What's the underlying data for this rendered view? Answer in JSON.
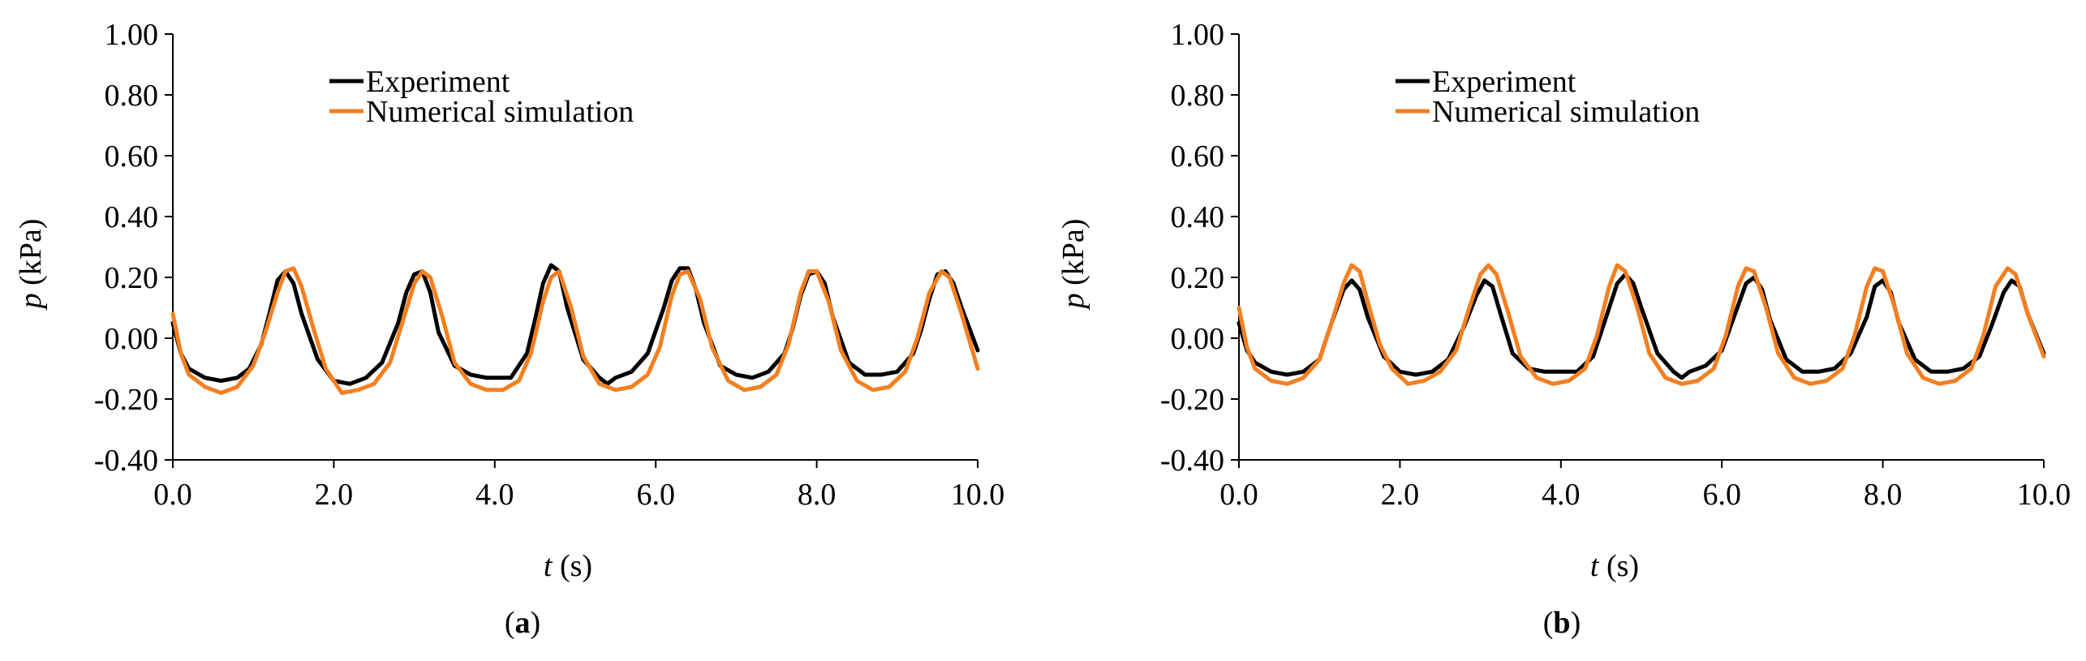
{
  "chart_data": [
    {
      "type": "line",
      "panel_label": "a",
      "xlabel_var": "t",
      "xlabel_unit": " (s)",
      "ylabel_var": "p",
      "ylabel_unit": " (kPa)",
      "xlim": [
        0,
        10
      ],
      "ylim": [
        -0.4,
        1.0
      ],
      "xticks": [
        "0.0",
        "2.0",
        "4.0",
        "6.0",
        "8.0",
        "10.0"
      ],
      "yticks": [
        "-0.40",
        "-0.20",
        "0.00",
        "0.20",
        "0.40",
        "0.60",
        "0.80",
        "1.00"
      ],
      "grid": false,
      "legend_position": "top-left",
      "series": [
        {
          "name": "Experiment",
          "color": "#000000",
          "x": [
            0.0,
            0.1,
            0.2,
            0.4,
            0.6,
            0.8,
            0.95,
            1.1,
            1.2,
            1.3,
            1.4,
            1.5,
            1.6,
            1.8,
            2.0,
            2.2,
            2.4,
            2.6,
            2.8,
            2.9,
            3.0,
            3.1,
            3.2,
            3.3,
            3.5,
            3.7,
            3.9,
            4.0,
            4.2,
            4.4,
            4.5,
            4.6,
            4.7,
            4.8,
            4.9,
            5.1,
            5.3,
            5.4,
            5.5,
            5.7,
            5.9,
            6.1,
            6.2,
            6.3,
            6.4,
            6.5,
            6.6,
            6.8,
            7.0,
            7.2,
            7.4,
            7.6,
            7.7,
            7.8,
            7.9,
            8.0,
            8.1,
            8.2,
            8.4,
            8.6,
            8.8,
            9.0,
            9.2,
            9.3,
            9.4,
            9.5,
            9.6,
            9.7,
            9.8,
            10.0
          ],
          "values": [
            0.05,
            -0.05,
            -0.1,
            -0.13,
            -0.14,
            -0.13,
            -0.1,
            -0.02,
            0.08,
            0.19,
            0.22,
            0.18,
            0.08,
            -0.07,
            -0.14,
            -0.15,
            -0.13,
            -0.08,
            0.05,
            0.15,
            0.21,
            0.22,
            0.15,
            0.02,
            -0.09,
            -0.12,
            -0.13,
            -0.13,
            -0.13,
            -0.05,
            0.06,
            0.18,
            0.24,
            0.22,
            0.1,
            -0.07,
            -0.13,
            -0.15,
            -0.13,
            -0.11,
            -0.05,
            0.1,
            0.19,
            0.23,
            0.23,
            0.16,
            0.05,
            -0.09,
            -0.12,
            -0.13,
            -0.11,
            -0.05,
            0.03,
            0.14,
            0.21,
            0.22,
            0.18,
            0.07,
            -0.08,
            -0.12,
            -0.12,
            -0.11,
            -0.05,
            0.03,
            0.13,
            0.21,
            0.22,
            0.18,
            0.1,
            -0.04
          ]
        },
        {
          "name": "Numerical simulation",
          "color": "#f47f20",
          "x": [
            0.0,
            0.1,
            0.2,
            0.4,
            0.6,
            0.8,
            1.0,
            1.15,
            1.3,
            1.4,
            1.5,
            1.6,
            1.75,
            1.9,
            2.1,
            2.3,
            2.5,
            2.7,
            2.85,
            3.0,
            3.1,
            3.2,
            3.35,
            3.5,
            3.7,
            3.9,
            4.1,
            4.3,
            4.45,
            4.6,
            4.7,
            4.8,
            4.95,
            5.1,
            5.3,
            5.5,
            5.7,
            5.9,
            6.05,
            6.2,
            6.3,
            6.4,
            6.55,
            6.7,
            6.9,
            7.1,
            7.3,
            7.5,
            7.65,
            7.8,
            7.9,
            8.0,
            8.15,
            8.3,
            8.5,
            8.7,
            8.9,
            9.1,
            9.25,
            9.4,
            9.55,
            9.65,
            9.8,
            10.0
          ],
          "values": [
            0.08,
            -0.05,
            -0.12,
            -0.16,
            -0.18,
            -0.16,
            -0.09,
            0.02,
            0.15,
            0.22,
            0.23,
            0.17,
            0.03,
            -0.1,
            -0.18,
            -0.17,
            -0.15,
            -0.08,
            0.05,
            0.18,
            0.22,
            0.2,
            0.07,
            -0.08,
            -0.15,
            -0.17,
            -0.17,
            -0.14,
            -0.05,
            0.12,
            0.2,
            0.22,
            0.1,
            -0.06,
            -0.15,
            -0.17,
            -0.16,
            -0.12,
            -0.03,
            0.14,
            0.21,
            0.22,
            0.13,
            -0.03,
            -0.14,
            -0.17,
            -0.16,
            -0.12,
            -0.02,
            0.15,
            0.22,
            0.22,
            0.12,
            -0.04,
            -0.14,
            -0.17,
            -0.16,
            -0.11,
            0.0,
            0.15,
            0.22,
            0.2,
            0.08,
            -0.1
          ]
        }
      ]
    },
    {
      "type": "line",
      "panel_label": "b",
      "xlabel_var": "t",
      "xlabel_unit": " (s)",
      "ylabel_var": "p",
      "ylabel_unit": " (kPa)",
      "xlim": [
        0,
        10
      ],
      "ylim": [
        -0.4,
        1.0
      ],
      "xticks": [
        "0.0",
        "2.0",
        "4.0",
        "6.0",
        "8.0",
        "10.0"
      ],
      "yticks": [
        "-0.40",
        "-0.20",
        "0.00",
        "0.20",
        "0.40",
        "0.60",
        "0.80",
        "1.00"
      ],
      "grid": false,
      "legend_position": "top-left",
      "series": [
        {
          "name": "Experiment",
          "color": "#000000",
          "x": [
            0.0,
            0.1,
            0.2,
            0.4,
            0.6,
            0.8,
            1.0,
            1.15,
            1.3,
            1.4,
            1.5,
            1.6,
            1.8,
            2.0,
            2.2,
            2.4,
            2.6,
            2.8,
            2.95,
            3.05,
            3.15,
            3.25,
            3.4,
            3.6,
            3.8,
            4.0,
            4.2,
            4.4,
            4.55,
            4.7,
            4.8,
            4.9,
            5.0,
            5.2,
            5.4,
            5.5,
            5.6,
            5.8,
            6.0,
            6.15,
            6.3,
            6.4,
            6.5,
            6.6,
            6.8,
            7.0,
            7.2,
            7.4,
            7.6,
            7.8,
            7.9,
            8.0,
            8.1,
            8.2,
            8.4,
            8.6,
            8.8,
            9.0,
            9.2,
            9.35,
            9.5,
            9.6,
            9.7,
            9.8,
            10.0
          ],
          "values": [
            0.05,
            -0.04,
            -0.08,
            -0.11,
            -0.12,
            -0.11,
            -0.07,
            0.05,
            0.16,
            0.19,
            0.16,
            0.07,
            -0.06,
            -0.11,
            -0.12,
            -0.11,
            -0.07,
            0.04,
            0.14,
            0.19,
            0.17,
            0.08,
            -0.05,
            -0.1,
            -0.11,
            -0.11,
            -0.11,
            -0.06,
            0.06,
            0.18,
            0.21,
            0.18,
            0.1,
            -0.05,
            -0.11,
            -0.13,
            -0.11,
            -0.09,
            -0.04,
            0.07,
            0.18,
            0.2,
            0.16,
            0.06,
            -0.07,
            -0.11,
            -0.11,
            -0.1,
            -0.05,
            0.07,
            0.17,
            0.19,
            0.15,
            0.05,
            -0.07,
            -0.11,
            -0.11,
            -0.1,
            -0.06,
            0.04,
            0.15,
            0.19,
            0.17,
            0.08,
            -0.05
          ]
        },
        {
          "name": "Numerical simulation",
          "color": "#f47f20",
          "x": [
            0.0,
            0.1,
            0.2,
            0.4,
            0.6,
            0.8,
            1.0,
            1.15,
            1.3,
            1.4,
            1.5,
            1.6,
            1.75,
            1.9,
            2.1,
            2.3,
            2.5,
            2.7,
            2.85,
            3.0,
            3.1,
            3.2,
            3.35,
            3.5,
            3.7,
            3.9,
            4.1,
            4.3,
            4.45,
            4.6,
            4.7,
            4.8,
            4.95,
            5.1,
            5.3,
            5.5,
            5.7,
            5.9,
            6.05,
            6.2,
            6.3,
            6.4,
            6.55,
            6.7,
            6.9,
            7.1,
            7.3,
            7.5,
            7.65,
            7.8,
            7.9,
            8.0,
            8.15,
            8.3,
            8.5,
            8.7,
            8.9,
            9.1,
            9.25,
            9.4,
            9.55,
            9.65,
            9.8,
            10.0
          ],
          "values": [
            0.1,
            -0.03,
            -0.1,
            -0.14,
            -0.15,
            -0.13,
            -0.07,
            0.05,
            0.18,
            0.24,
            0.22,
            0.12,
            -0.02,
            -0.1,
            -0.15,
            -0.14,
            -0.11,
            -0.04,
            0.09,
            0.21,
            0.24,
            0.21,
            0.08,
            -0.06,
            -0.13,
            -0.15,
            -0.14,
            -0.1,
            0.01,
            0.17,
            0.24,
            0.22,
            0.1,
            -0.05,
            -0.13,
            -0.15,
            -0.14,
            -0.1,
            0.01,
            0.17,
            0.23,
            0.22,
            0.1,
            -0.05,
            -0.13,
            -0.15,
            -0.14,
            -0.1,
            0.01,
            0.17,
            0.23,
            0.22,
            0.1,
            -0.05,
            -0.13,
            -0.15,
            -0.14,
            -0.1,
            0.01,
            0.17,
            0.23,
            0.21,
            0.08,
            -0.06
          ]
        }
      ]
    }
  ]
}
